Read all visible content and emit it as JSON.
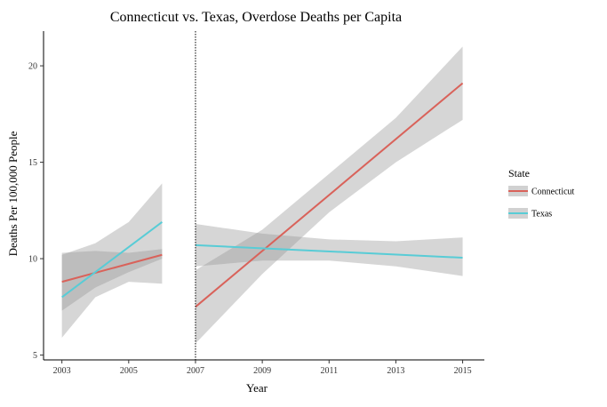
{
  "chart_data": {
    "type": "line",
    "title": "Connecticut vs. Texas, Overdose Deaths per Capita",
    "xlabel": "Year",
    "ylabel": "Deaths Per 100,000 People",
    "xlim": [
      2002.45,
      2015.65
    ],
    "ylim": [
      4.75,
      21.8
    ],
    "x_ticks": [
      2003,
      2005,
      2007,
      2009,
      2011,
      2013,
      2015
    ],
    "y_ticks": [
      5,
      10,
      15,
      20
    ],
    "vline": {
      "x": 2007,
      "style": "dotted"
    },
    "legend": {
      "title": "State",
      "position": "right"
    },
    "colors": {
      "Connecticut": "#d9625a",
      "Texas": "#58ccd6",
      "ribbon": "#999999"
    },
    "series": [
      {
        "name": "Connecticut",
        "segments": [
          {
            "x": [
              2003,
              2006
            ],
            "y": [
              8.8,
              10.2
            ],
            "ci_x": [
              2003,
              2004,
              2005,
              2006
            ],
            "ci_lower": [
              7.3,
              8.5,
              9.3,
              10.0
            ],
            "ci_upper": [
              10.3,
              10.4,
              10.3,
              10.5
            ]
          },
          {
            "x": [
              2007,
              2015
            ],
            "y": [
              7.5,
              19.1
            ],
            "ci_x": [
              2007,
              2009,
              2011,
              2013,
              2015
            ],
            "ci_lower": [
              5.6,
              9.2,
              12.4,
              15.0,
              17.2
            ],
            "ci_upper": [
              9.4,
              11.5,
              14.4,
              17.3,
              21.0
            ]
          }
        ]
      },
      {
        "name": "Texas",
        "segments": [
          {
            "x": [
              2003,
              2006
            ],
            "y": [
              8.0,
              11.9
            ],
            "ci_x": [
              2003,
              2004,
              2005,
              2006
            ],
            "ci_lower": [
              5.9,
              8.0,
              8.8,
              8.7
            ],
            "ci_upper": [
              10.2,
              10.8,
              11.9,
              13.9
            ]
          },
          {
            "x": [
              2007,
              2015
            ],
            "y": [
              10.7,
              10.05
            ],
            "ci_x": [
              2007,
              2009,
              2011,
              2013,
              2015
            ],
            "ci_lower": [
              9.6,
              9.9,
              9.9,
              9.6,
              9.1
            ],
            "ci_upper": [
              11.8,
              11.3,
              11.0,
              10.9,
              11.1
            ]
          }
        ]
      }
    ]
  }
}
